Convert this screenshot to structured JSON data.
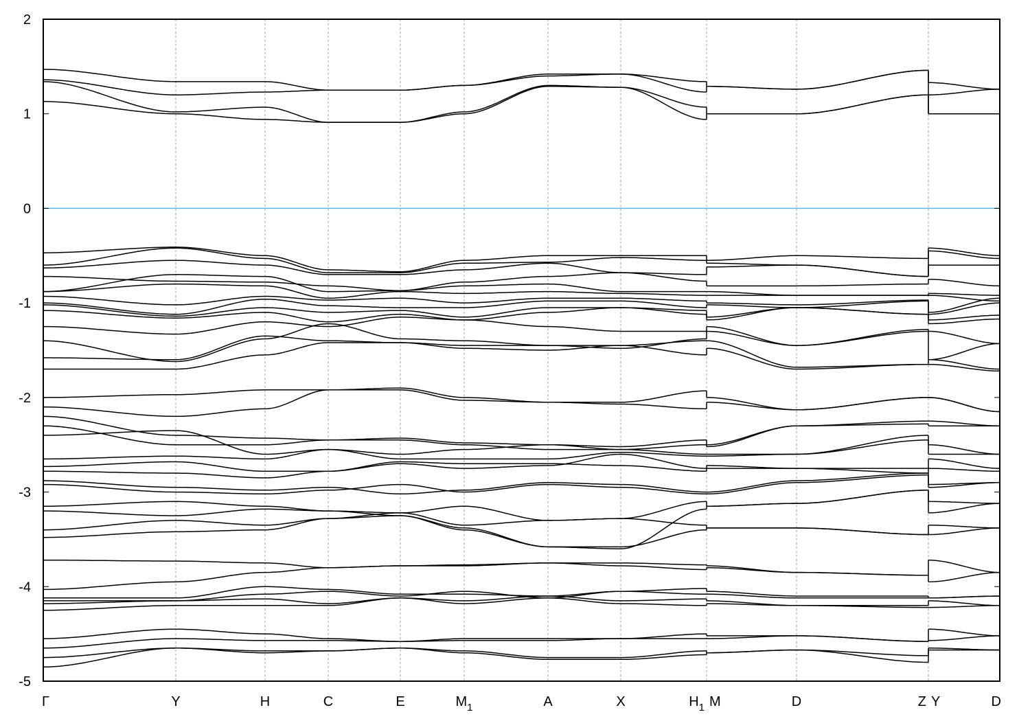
{
  "chart_data": {
    "type": "line",
    "title": "",
    "xlabel": "",
    "ylabel": "",
    "ylim": [
      -5,
      2
    ],
    "yticks": [
      -5,
      -4,
      -3,
      -2,
      -1,
      0,
      1,
      2
    ],
    "grid": "vertical dashed at high-symmetry points",
    "fermi_level": 0,
    "colors": {
      "bands": "#000000",
      "fermi_line": "#56b4e9",
      "grid": "#a0a0a0"
    },
    "kpoints": [
      0,
      1.93,
      3.23,
      4.15,
      5.2,
      6.13,
      7.35,
      8.41,
      9.66,
      9.66,
      10.97,
      12.89,
      12.89,
      13.93
    ],
    "segments": [
      [
        0,
        8
      ],
      [
        9,
        11
      ],
      [
        12,
        13
      ]
    ],
    "xticks": [
      {
        "k": 0,
        "label": "Γ",
        "sub": ""
      },
      {
        "k": 1.93,
        "label": "Y",
        "sub": ""
      },
      {
        "k": 3.23,
        "label": "H",
        "sub": ""
      },
      {
        "k": 4.15,
        "label": "C",
        "sub": ""
      },
      {
        "k": 5.2,
        "label": "E",
        "sub": ""
      },
      {
        "k": 6.13,
        "label": "M",
        "sub": "1"
      },
      {
        "k": 7.35,
        "label": "A",
        "sub": ""
      },
      {
        "k": 8.41,
        "label": "X",
        "sub": ""
      },
      {
        "k": 9.66,
        "label": "H",
        "sub": "1",
        "label_right": "M"
      },
      {
        "k": 10.97,
        "label": "D",
        "sub": ""
      },
      {
        "k": 12.89,
        "label": "Z",
        "sub": "",
        "label_right": "Y"
      },
      {
        "k": 13.93,
        "label": "D",
        "sub": ""
      }
    ],
    "bands": [
      [
        1.47,
        1.34,
        1.34,
        1.25,
        1.25,
        1.3,
        1.42,
        1.42,
        1.34,
        1.29,
        1.26,
        1.46,
        1.33,
        1.26
      ],
      [
        1.36,
        1.2,
        1.23,
        1.25,
        1.25,
        1.3,
        1.4,
        1.42,
        1.23,
        1.29,
        1.26,
        1.46,
        1.2,
        1.26
      ],
      [
        1.34,
        1.02,
        1.07,
        0.91,
        0.91,
        1.02,
        1.3,
        1.28,
        1.07,
        1.0,
        1.0,
        1.2,
        1.0,
        1.0
      ],
      [
        1.13,
        1.0,
        0.94,
        0.91,
        0.91,
        1.0,
        1.29,
        1.28,
        0.94,
        1.0,
        1.0,
        1.2,
        1.0,
        1.0
      ],
      [
        -0.47,
        -0.41,
        -0.5,
        -0.65,
        -0.67,
        -0.55,
        -0.5,
        -0.5,
        -0.5,
        -0.55,
        -0.5,
        -0.53,
        -0.42,
        -0.5
      ],
      [
        -0.6,
        -0.42,
        -0.53,
        -0.68,
        -0.68,
        -0.58,
        -0.57,
        -0.52,
        -0.55,
        -0.58,
        -0.6,
        -0.72,
        -0.45,
        -0.53
      ],
      [
        -0.63,
        -0.55,
        -0.6,
        -0.7,
        -0.7,
        -0.65,
        -0.58,
        -0.68,
        -0.7,
        -0.62,
        -0.6,
        -0.72,
        -0.6,
        -0.6
      ],
      [
        -0.72,
        -0.77,
        -0.78,
        -0.82,
        -0.87,
        -0.78,
        -0.72,
        -0.68,
        -0.77,
        -0.82,
        -0.82,
        -0.8,
        -0.75,
        -0.82
      ],
      [
        -0.88,
        -0.7,
        -0.72,
        -0.88,
        -0.87,
        -0.82,
        -0.8,
        -0.88,
        -0.88,
        -0.88,
        -0.92,
        -0.92,
        -0.9,
        -0.92
      ],
      [
        -0.88,
        -0.8,
        -0.82,
        -0.95,
        -0.88,
        -0.9,
        -0.88,
        -0.9,
        -0.92,
        -0.92,
        -0.92,
        -0.92,
        -0.92,
        -0.98
      ],
      [
        -0.93,
        -1.02,
        -0.93,
        -0.97,
        -0.95,
        -1.0,
        -0.95,
        -0.95,
        -0.98,
        -1.0,
        -1.02,
        -0.97,
        -1.1,
        -0.95
      ],
      [
        -1.0,
        -1.12,
        -0.96,
        -1.03,
        -1.05,
        -1.05,
        -0.98,
        -0.98,
        -1.05,
        -1.02,
        -1.05,
        -0.98,
        -1.12,
        -1.0
      ],
      [
        -1.02,
        -1.14,
        -1.05,
        -1.1,
        -1.08,
        -1.15,
        -1.05,
        -1.05,
        -1.08,
        -1.15,
        -1.05,
        -1.12,
        -1.18,
        -1.13
      ],
      [
        -1.08,
        -1.16,
        -1.1,
        -1.2,
        -1.12,
        -1.18,
        -1.1,
        -1.05,
        -1.12,
        -1.18,
        -1.05,
        -1.12,
        -1.22,
        -1.17
      ],
      [
        -1.25,
        -1.33,
        -1.2,
        -1.25,
        -1.15,
        -1.18,
        -1.25,
        -1.3,
        -1.3,
        -1.25,
        -1.45,
        -1.3,
        -1.3,
        -1.43
      ],
      [
        -1.4,
        -1.62,
        -1.38,
        -1.22,
        -1.38,
        -1.4,
        -1.45,
        -1.48,
        -1.38,
        -1.3,
        -1.45,
        -1.28,
        -1.6,
        -1.43
      ],
      [
        -1.58,
        -1.6,
        -1.35,
        -1.4,
        -1.42,
        -1.45,
        -1.45,
        -1.45,
        -1.4,
        -1.4,
        -1.68,
        -1.65,
        -1.6,
        -1.7
      ],
      [
        -1.7,
        -1.7,
        -1.55,
        -1.42,
        -1.42,
        -1.48,
        -1.5,
        -1.45,
        -1.55,
        -1.48,
        -1.7,
        -1.65,
        -1.65,
        -1.72
      ],
      [
        -2.0,
        -1.97,
        -1.92,
        -1.92,
        -1.9,
        -2.0,
        -2.05,
        -2.05,
        -1.93,
        -2.0,
        -2.13,
        -2.0,
        -2.0,
        -2.15
      ],
      [
        -2.1,
        -2.2,
        -2.12,
        -1.92,
        -1.92,
        -2.03,
        -2.05,
        -2.07,
        -2.12,
        -2.05,
        -2.13,
        -2.0,
        -2.0,
        -2.15
      ],
      [
        -2.2,
        -2.4,
        -2.43,
        -2.45,
        -2.43,
        -2.48,
        -2.5,
        -2.52,
        -2.45,
        -2.5,
        -2.3,
        -2.25,
        -2.25,
        -2.3
      ],
      [
        -2.3,
        -2.5,
        -2.5,
        -2.45,
        -2.45,
        -2.5,
        -2.55,
        -2.55,
        -2.5,
        -2.52,
        -2.3,
        -2.28,
        -2.3,
        -2.3
      ],
      [
        -2.4,
        -2.35,
        -2.6,
        -2.55,
        -2.6,
        -2.55,
        -2.5,
        -2.55,
        -2.6,
        -2.6,
        -2.6,
        -2.4,
        -2.5,
        -2.6
      ],
      [
        -2.65,
        -2.62,
        -2.65,
        -2.55,
        -2.65,
        -2.65,
        -2.65,
        -2.58,
        -2.62,
        -2.62,
        -2.6,
        -2.45,
        -2.6,
        -2.6
      ],
      [
        -2.73,
        -2.68,
        -2.78,
        -2.78,
        -2.7,
        -2.75,
        -2.72,
        -2.6,
        -2.75,
        -2.72,
        -2.75,
        -2.75,
        -2.65,
        -2.75
      ],
      [
        -2.78,
        -2.8,
        -2.85,
        -2.78,
        -2.68,
        -2.7,
        -2.7,
        -2.72,
        -2.78,
        -2.75,
        -2.75,
        -2.8,
        -2.75,
        -2.78
      ],
      [
        -2.88,
        -2.95,
        -2.98,
        -2.95,
        -3.02,
        -2.98,
        -2.9,
        -2.92,
        -3.0,
        -3.0,
        -2.88,
        -2.8,
        -2.95,
        -2.9
      ],
      [
        -2.92,
        -3.0,
        -3.02,
        -2.98,
        -2.92,
        -3.0,
        -2.92,
        -2.95,
        -3.02,
        -3.02,
        -2.9,
        -2.82,
        -2.92,
        -2.9
      ],
      [
        -3.15,
        -3.1,
        -3.15,
        -3.2,
        -3.22,
        -3.35,
        -3.3,
        -3.28,
        -3.1,
        -3.15,
        -3.12,
        -2.98,
        -3.1,
        -3.12
      ],
      [
        -3.2,
        -3.25,
        -3.18,
        -3.2,
        -3.25,
        -3.38,
        -3.58,
        -3.6,
        -3.18,
        -3.15,
        -3.12,
        -2.98,
        -3.22,
        -3.12
      ],
      [
        -3.4,
        -3.3,
        -3.35,
        -3.28,
        -3.22,
        -3.15,
        -3.3,
        -3.28,
        -3.35,
        -3.38,
        -3.38,
        -3.45,
        -3.35,
        -3.38
      ],
      [
        -3.48,
        -3.42,
        -3.4,
        -3.28,
        -3.25,
        -3.4,
        -3.58,
        -3.58,
        -3.4,
        -3.38,
        -3.38,
        -3.45,
        -3.45,
        -3.38
      ],
      [
        -3.72,
        -3.73,
        -3.75,
        -3.8,
        -3.78,
        -3.78,
        -3.75,
        -3.75,
        -3.77,
        -3.78,
        -3.85,
        -3.88,
        -3.72,
        -3.85
      ],
      [
        -4.03,
        -3.95,
        -3.85,
        -3.8,
        -3.78,
        -3.77,
        -3.75,
        -3.78,
        -3.82,
        -3.8,
        -3.85,
        -3.88,
        -3.95,
        -3.85
      ],
      [
        -4.12,
        -4.12,
        -4.0,
        -4.03,
        -4.08,
        -4.08,
        -4.1,
        -4.05,
        -4.02,
        -4.05,
        -4.1,
        -4.1,
        -4.12,
        -4.1
      ],
      [
        -4.15,
        -4.15,
        -4.08,
        -4.05,
        -4.1,
        -4.05,
        -4.12,
        -4.05,
        -4.08,
        -4.08,
        -4.12,
        -4.12,
        -4.12,
        -4.1
      ],
      [
        -4.18,
        -4.15,
        -4.13,
        -4.18,
        -4.12,
        -4.15,
        -4.1,
        -4.15,
        -4.13,
        -4.15,
        -4.2,
        -4.2,
        -4.15,
        -4.2
      ],
      [
        -4.25,
        -4.2,
        -4.2,
        -4.2,
        -4.12,
        -4.18,
        -4.12,
        -4.18,
        -4.2,
        -4.18,
        -4.2,
        -4.22,
        -4.22,
        -4.2
      ],
      [
        -4.55,
        -4.45,
        -4.5,
        -4.55,
        -4.58,
        -4.55,
        -4.55,
        -4.55,
        -4.5,
        -4.52,
        -4.52,
        -4.58,
        -4.45,
        -4.52
      ],
      [
        -4.65,
        -4.55,
        -4.57,
        -4.57,
        -4.58,
        -4.57,
        -4.57,
        -4.55,
        -4.55,
        -4.55,
        -4.52,
        -4.58,
        -4.57,
        -4.52
      ],
      [
        -4.75,
        -4.65,
        -4.68,
        -4.68,
        -4.65,
        -4.68,
        -4.75,
        -4.75,
        -4.68,
        -4.7,
        -4.67,
        -4.73,
        -4.65,
        -4.67
      ],
      [
        -4.85,
        -4.65,
        -4.7,
        -4.68,
        -4.65,
        -4.7,
        -4.77,
        -4.77,
        -4.72,
        -4.7,
        -4.67,
        -4.8,
        -4.67,
        -4.67
      ]
    ]
  }
}
